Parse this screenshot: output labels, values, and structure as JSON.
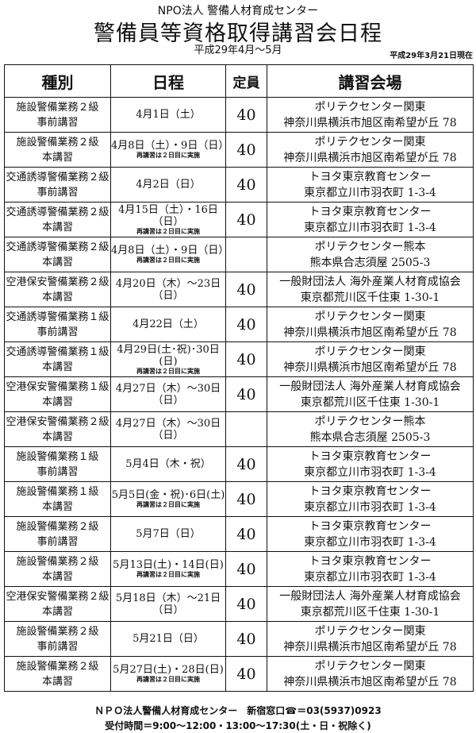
{
  "header": {
    "organization": "NPO法人 警備人材育成センター",
    "title": "警備員等資格取得講習会日程",
    "period": "平成29年4月～5月",
    "as_of": "平成29年3月21日現在"
  },
  "table": {
    "columns": [
      "種別",
      "日程",
      "定員",
      "講習会場"
    ],
    "rows": [
      {
        "kind1": "施設警備業務２級",
        "kind2": "事前講習",
        "date": "4月1日（土）",
        "note": "",
        "capacity": "40",
        "venue1": "ポリテクセンター関東",
        "venue2": "神奈川県横浜市旭区南希望が丘 78"
      },
      {
        "kind1": "施設警備業務２級",
        "kind2": "本講習",
        "date": "4月8日（土）・9日（日）",
        "note": "再講習は２日目に実施",
        "capacity": "40",
        "venue1": "ポリテクセンター関東",
        "venue2": "神奈川県横浜市旭区南希望が丘 78"
      },
      {
        "kind1": "交通誘導警備業務２級",
        "kind2": "事前講習",
        "date": "4月2日（日）",
        "note": "",
        "capacity": "40",
        "venue1": "トヨタ東京教育センター",
        "venue2": "東京都立川市羽衣町 1-3-4"
      },
      {
        "kind1": "交通誘導警備業務２級",
        "kind2": "本講習",
        "date": "4月15日（土）・16日（日）",
        "note": "再講習は２日目に実施",
        "capacity": "40",
        "venue1": "トヨタ東京教育センター",
        "venue2": "東京都立川市羽衣町 1-3-4"
      },
      {
        "kind1": "交通誘導警備業務２級",
        "kind2": "本講習",
        "date": "4月8日（土）・9日（日）",
        "note": "再講習は２日目に実施",
        "capacity": "",
        "venue1": "ポリテクセンター熊本",
        "venue2": "熊本県合志須屋 2505-3"
      },
      {
        "kind1": "空港保安警備業務２級",
        "kind2": "本講習",
        "date": "4月20日（木）～23日（日）",
        "note": "",
        "capacity": "40",
        "venue1": "一般財団法人 海外産業人材育成協会",
        "venue2": "東京都荒川区千住東 1-30-1"
      },
      {
        "kind1": "交通誘導警備業務１級",
        "kind2": "事前講習",
        "date": "4月22日（土）",
        "note": "",
        "capacity": "40",
        "venue1": "ポリテクセンター関東",
        "venue2": "神奈川県横浜市旭区南希望が丘 78"
      },
      {
        "kind1": "交通誘導警備業務１級",
        "kind2": "本講習",
        "date": "4月29日(土･祝)･30日(日)",
        "note": "再講習は２日目に実施",
        "capacity": "40",
        "venue1": "ポリテクセンター関東",
        "venue2": "神奈川県横浜市旭区南希望が丘 78"
      },
      {
        "kind1": "空港保安警備業務１級",
        "kind2": "本講習",
        "date": "4月27日（木）～30日（日）",
        "note": "",
        "capacity": "40",
        "venue1": "一般財団法人 海外産業人材育成協会",
        "venue2": "東京都荒川区千住東 1-30-1"
      },
      {
        "kind1": "空港保安警備業務２級",
        "kind2": "本講習",
        "date": "4月27日（木）～30日（日）",
        "note": "",
        "capacity": "",
        "venue1": "ポリテクセンター熊本",
        "venue2": "熊本県合志須屋 2505-3"
      },
      {
        "kind1": "施設警備業務１級",
        "kind2": "事前講習",
        "date": "5月4日（木・祝）",
        "note": "",
        "capacity": "40",
        "venue1": "トヨタ東京教育センター",
        "venue2": "東京都立川市羽衣町 1-3-4"
      },
      {
        "kind1": "施設警備業務１級",
        "kind2": "本講習",
        "date": "5月5日(金・祝)･6日(土)",
        "note": "再講習は２日目に実施",
        "capacity": "40",
        "venue1": "トヨタ東京教育センター",
        "venue2": "東京都立川市羽衣町 1-3-4"
      },
      {
        "kind1": "施設警備業務２級",
        "kind2": "事前講習",
        "date": "5月7日（日）",
        "note": "",
        "capacity": "40",
        "venue1": "トヨタ東京教育センター",
        "venue2": "東京都立川市羽衣町 1-3-4"
      },
      {
        "kind1": "施設警備業務２級",
        "kind2": "本講習",
        "date": "5月13日(土)・14日(日)",
        "note": "再講習は２日目に実施",
        "capacity": "40",
        "venue1": "トヨタ東京教育センター",
        "venue2": "東京都立川市羽衣町 1-3-4"
      },
      {
        "kind1": "空港保安警備業務２級",
        "kind2": "本講習",
        "date": "5月18日（木）～21日（日）",
        "note": "",
        "capacity": "40",
        "venue1": "一般財団法人 海外産業人材育成協会",
        "venue2": "東京都荒川区千住東 1-30-1"
      },
      {
        "kind1": "施設警備業務２級",
        "kind2": "事前講習",
        "date": "5月21日（日）",
        "note": "",
        "capacity": "40",
        "venue1": "ポリテクセンター関東",
        "venue2": "神奈川県横浜市旭区南希望が丘 78"
      },
      {
        "kind1": "施設警備業務２級",
        "kind2": "本講習",
        "date": "5月27日(土)・28日(日)",
        "note": "再講習は２日目に実施",
        "capacity": "40",
        "venue1": "ポリテクセンター関東",
        "venue2": "神奈川県横浜市旭区南希望が丘 78"
      }
    ]
  },
  "footer": {
    "contact": "ＮＰＯ法人警備人材育成センター　新宿窓口☎＝03(5937)0923",
    "hours": "受付時間＝9:00～12:00・13:00～17:30(土・日・祝除く)"
  }
}
